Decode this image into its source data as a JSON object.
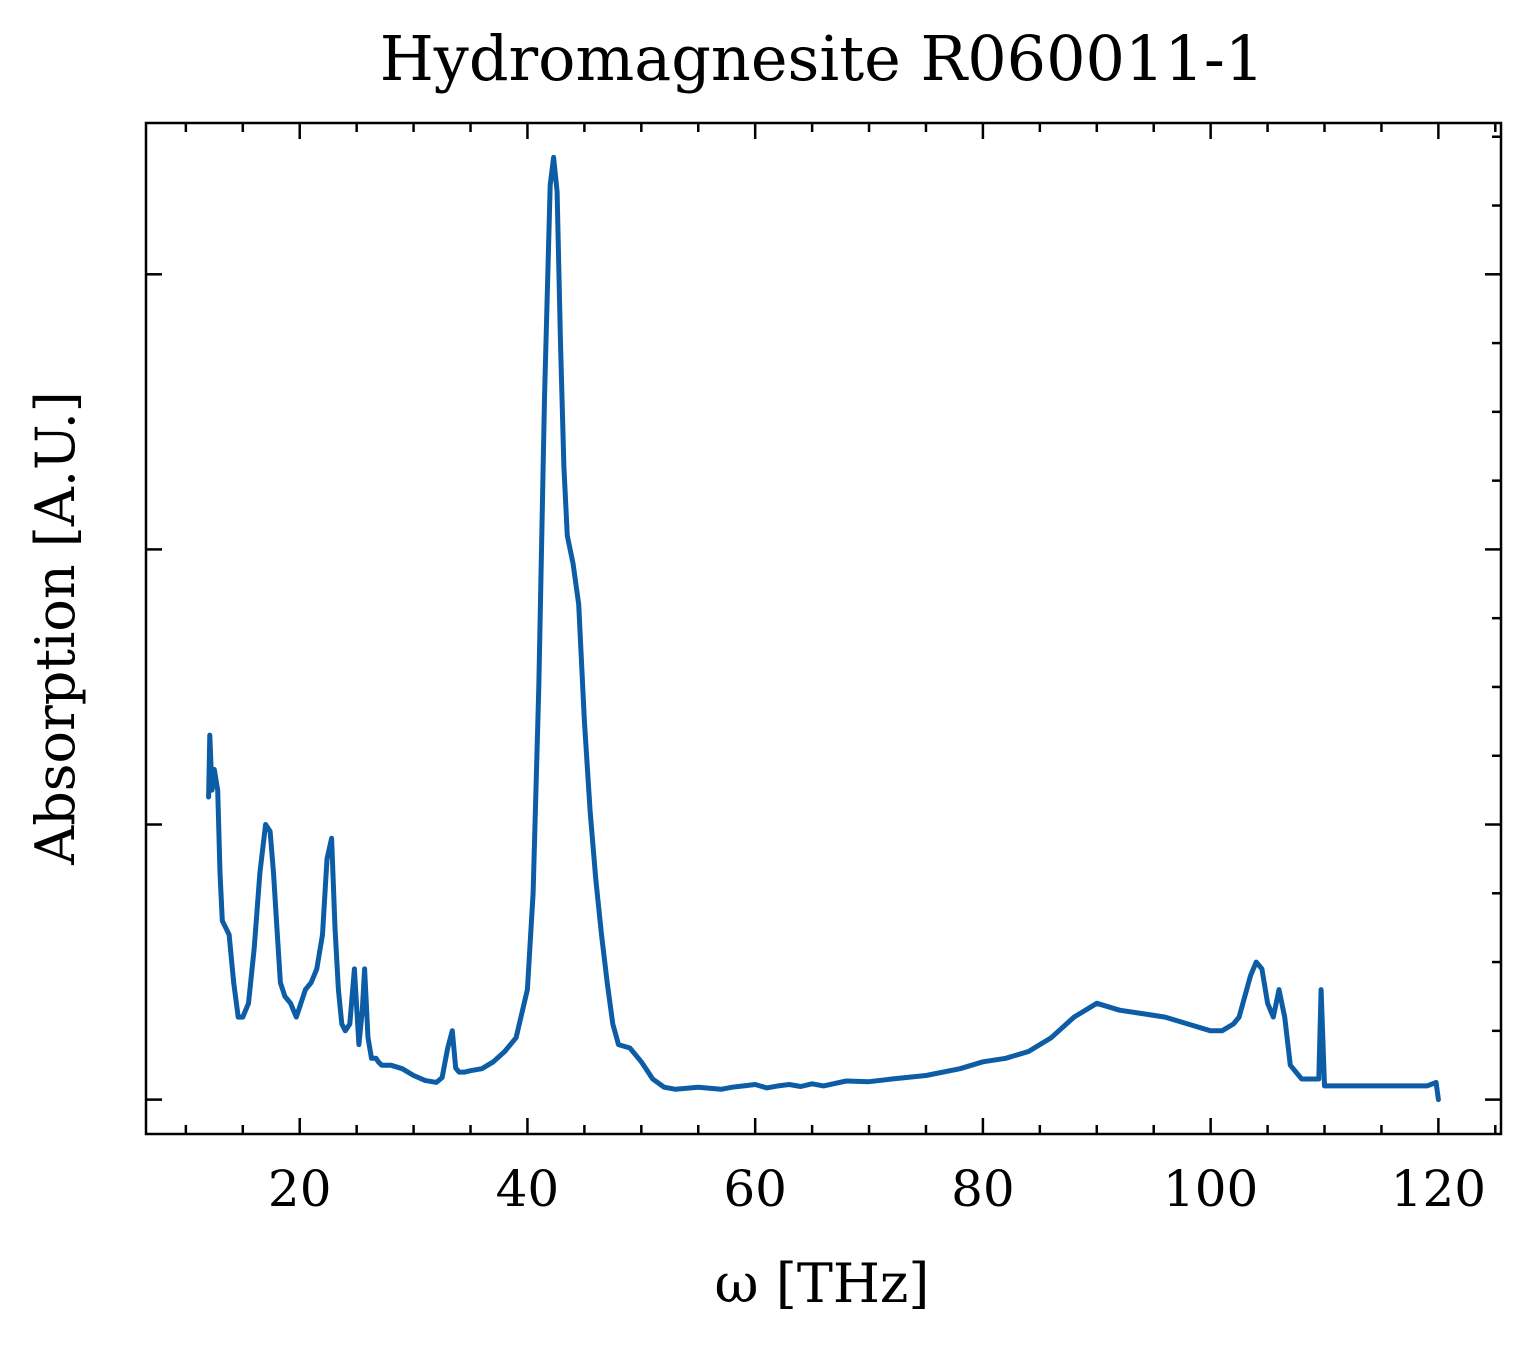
{
  "chart_data": {
    "type": "line",
    "title": "Hydromagnesite R060011-1",
    "xlabel": "ω [THz]",
    "ylabel": "Absorption [A.U.]",
    "xlim": [
      6.5,
      125.5
    ],
    "ylim": [
      -0.05,
      1.42
    ],
    "x_ticks": [
      20,
      40,
      60,
      80,
      100,
      120
    ],
    "x_tick_labels": [
      "20",
      "40",
      "60",
      "80",
      "100",
      "120"
    ],
    "x_minor_step": 5,
    "y_ticks": [
      0.0,
      0.4,
      0.8,
      1.2
    ],
    "y_minor_step": 0.1,
    "grid": false,
    "legend": "none",
    "line_color": "#0C5DA5",
    "series": [
      {
        "x": [
          12.0,
          12.1,
          12.3,
          12.5,
          12.8,
          13.0,
          13.2,
          13.5,
          13.8,
          14.2,
          14.6,
          15.0,
          15.5,
          16.0,
          16.5,
          17.0,
          17.4,
          17.7,
          18.0,
          18.3,
          18.7,
          19.2,
          19.7,
          20.1,
          20.5,
          21.0,
          21.5,
          22.0,
          22.4,
          22.8,
          23.1,
          23.4,
          23.7,
          24.0,
          24.4,
          24.8,
          25.2,
          25.5,
          25.7,
          26.0,
          26.3,
          26.5,
          26.7,
          26.9,
          27.2,
          28.0,
          29.0,
          30.0,
          31.0,
          32.0,
          32.5,
          33.0,
          33.4,
          33.7,
          34.0,
          34.5,
          35.0,
          36.0,
          37.0,
          38.0,
          39.0,
          40.0,
          40.5,
          41.0,
          41.5,
          42.0,
          42.3,
          42.6,
          42.9,
          43.2,
          43.5,
          44.0,
          44.5,
          45.0,
          45.5,
          46.0,
          46.5,
          47.0,
          47.5,
          48.0,
          49.0,
          50.0,
          51.0,
          52.0,
          53.0,
          55.0,
          57.0,
          58.0,
          59.0,
          60.0,
          61.0,
          62.0,
          63.0,
          64.0,
          65.0,
          66.0,
          68.0,
          70.0,
          72.0,
          75.0,
          78.0,
          80.0,
          82.0,
          84.0,
          86.0,
          88.0,
          90.0,
          92.0,
          94.0,
          96.0,
          98.0,
          100.0,
          101.0,
          102.0,
          102.5,
          103.0,
          103.5,
          104.0,
          104.5,
          105.0,
          105.5,
          106.0,
          106.5,
          107.0,
          108.0,
          109.0,
          109.5,
          109.7,
          110.0,
          111.0,
          112.0,
          113.0,
          114.0,
          115.0,
          116.0,
          117.0,
          118.0,
          119.0,
          119.8,
          120.0
        ],
        "y": [
          0.44,
          0.53,
          0.45,
          0.48,
          0.45,
          0.33,
          0.26,
          0.25,
          0.24,
          0.17,
          0.12,
          0.12,
          0.14,
          0.22,
          0.33,
          0.4,
          0.39,
          0.33,
          0.25,
          0.17,
          0.15,
          0.14,
          0.12,
          0.14,
          0.16,
          0.17,
          0.19,
          0.24,
          0.35,
          0.38,
          0.25,
          0.16,
          0.11,
          0.1,
          0.11,
          0.19,
          0.08,
          0.13,
          0.19,
          0.09,
          0.06,
          0.06,
          0.06,
          0.055,
          0.05,
          0.05,
          0.045,
          0.035,
          0.028,
          0.025,
          0.032,
          0.075,
          0.1,
          0.046,
          0.04,
          0.04,
          0.042,
          0.045,
          0.055,
          0.07,
          0.09,
          0.16,
          0.3,
          0.6,
          1.02,
          1.33,
          1.37,
          1.32,
          1.1,
          0.92,
          0.82,
          0.78,
          0.72,
          0.55,
          0.42,
          0.32,
          0.24,
          0.17,
          0.11,
          0.08,
          0.075,
          0.055,
          0.03,
          0.018,
          0.015,
          0.018,
          0.015,
          0.018,
          0.02,
          0.022,
          0.017,
          0.02,
          0.022,
          0.019,
          0.023,
          0.02,
          0.027,
          0.026,
          0.03,
          0.035,
          0.045,
          0.055,
          0.06,
          0.07,
          0.09,
          0.12,
          0.14,
          0.13,
          0.125,
          0.12,
          0.11,
          0.1,
          0.1,
          0.11,
          0.12,
          0.15,
          0.18,
          0.2,
          0.19,
          0.14,
          0.12,
          0.16,
          0.12,
          0.05,
          0.03,
          0.03,
          0.03,
          0.16,
          0.02,
          0.02,
          0.02,
          0.02,
          0.02,
          0.02,
          0.02,
          0.02,
          0.02,
          0.02,
          0.025,
          0.0
        ]
      }
    ]
  }
}
